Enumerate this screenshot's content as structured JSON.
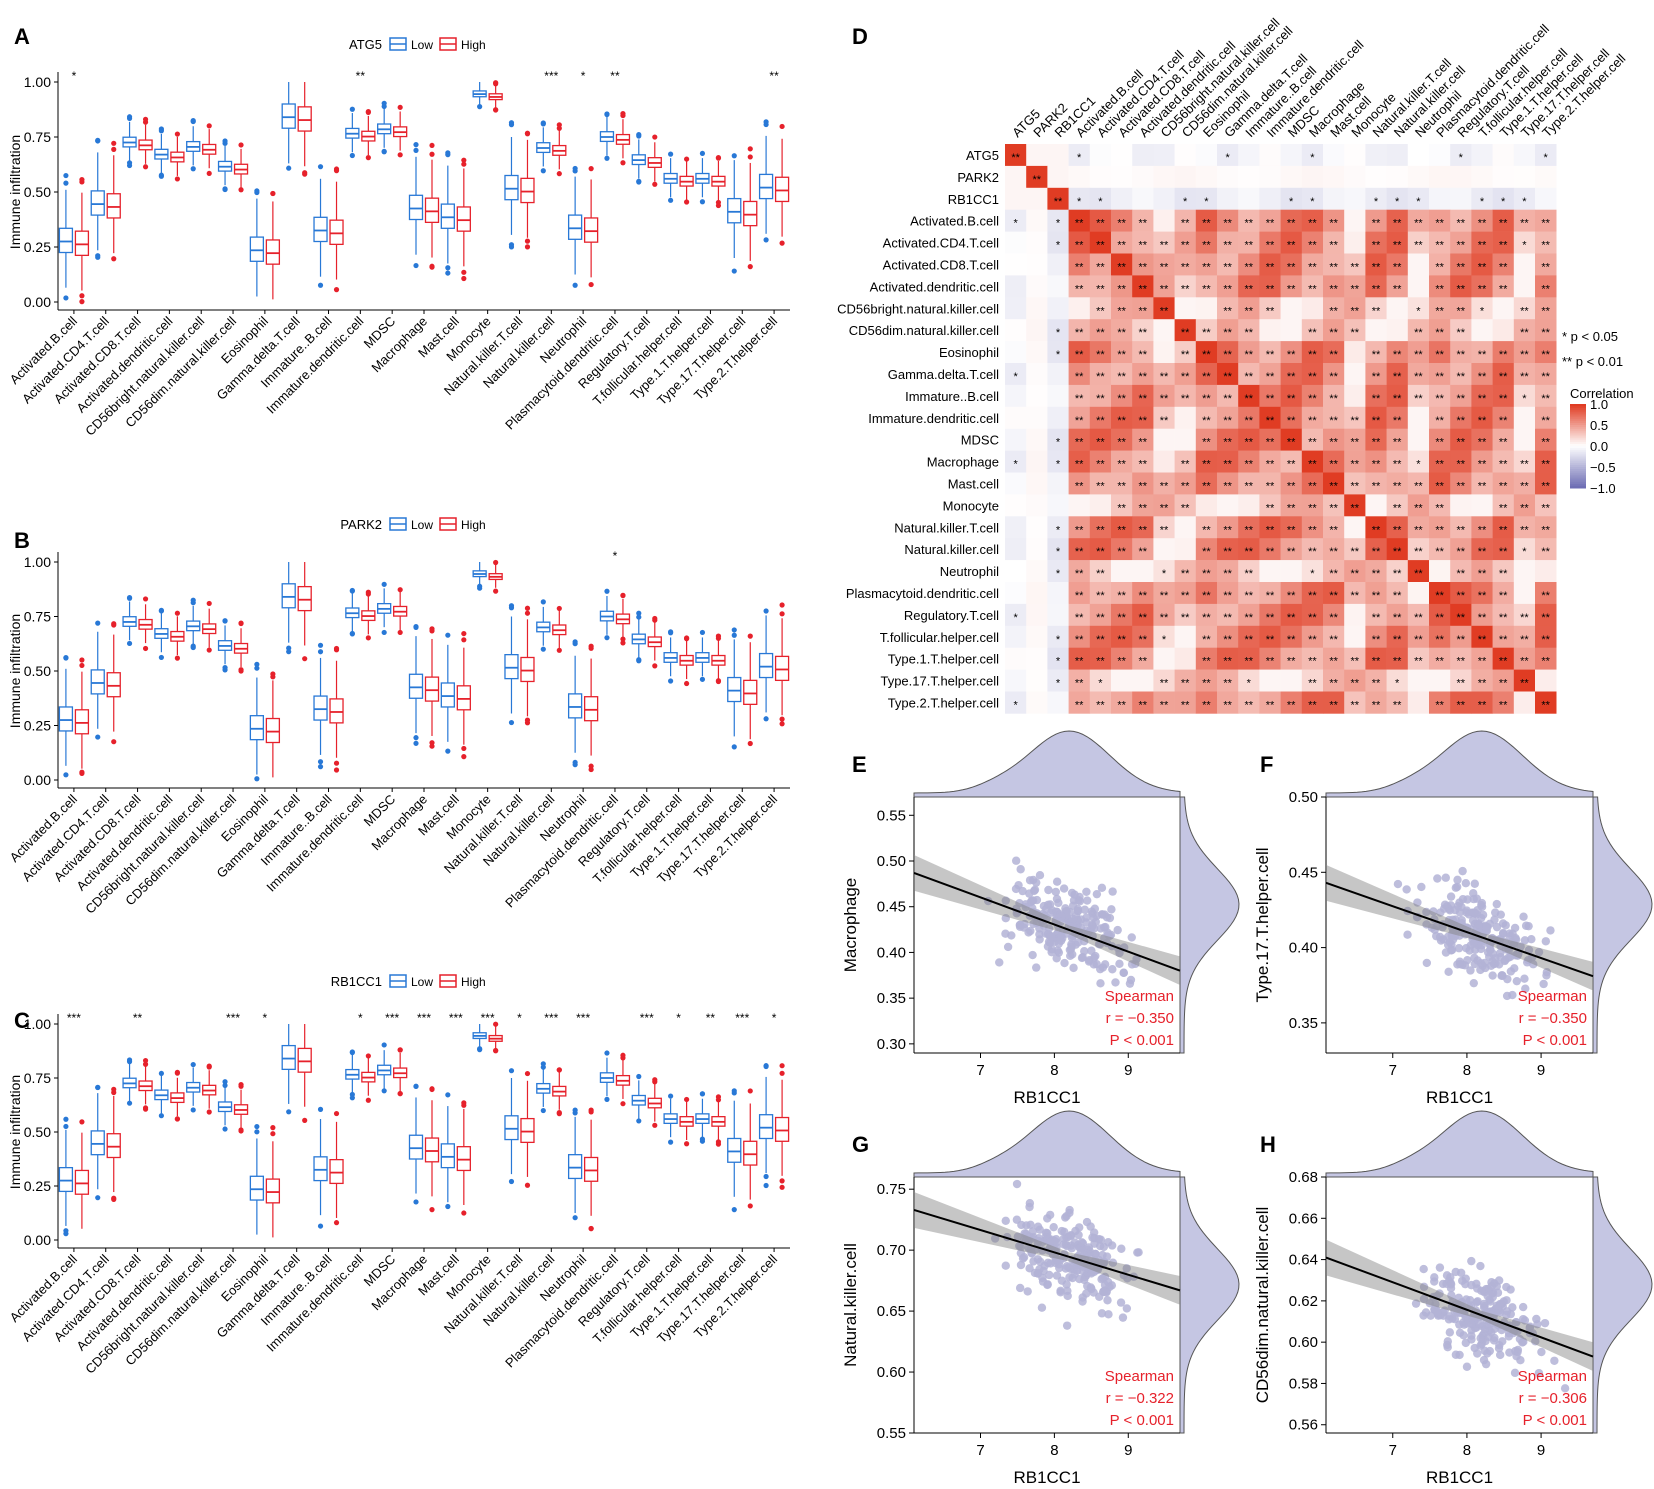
{
  "colors": {
    "low": "#2878d6",
    "high": "#e6212b",
    "scatter": "#b3b3d6",
    "density": "#c5c6e3",
    "heat_pos": "#e8432a",
    "heat_neg": "#6b6bb0",
    "stats": "#e6212b"
  },
  "panels": {
    "A": "A",
    "B": "B",
    "C": "C",
    "D": "D",
    "E": "E",
    "F": "F",
    "G": "G",
    "H": "H"
  },
  "boxplots": {
    "ylabel": "Immune infiltration",
    "yticks": [
      "0.00",
      "0.25",
      "0.50",
      "0.75",
      "1.00"
    ],
    "legend_low": "Low",
    "legend_high": "High",
    "cells": [
      "Activated.B.cell",
      "Activated.CD4.T.cell",
      "Activated.CD8.T.cell",
      "Activated.dendritic.cell",
      "CD56bright.natural.killer.cell",
      "CD56dim.natural.killer.cell",
      "Eosinophil",
      "Gamma.delta.T.cell",
      "Immature..B.cell",
      "Immature.dendritic.cell",
      "MDSC",
      "Macrophage",
      "Mast.cell",
      "Monocyte",
      "Natural.killer.T.cell",
      "Natural.killer.cell",
      "Neutrophil",
      "Plasmacytoid.dendritic.cell",
      "Regulatory.T.cell",
      "T.follicular.helper.cell",
      "Type.1.T.helper.cell",
      "Type.17.T.helper.cell",
      "Type.2.T.helper.cell"
    ],
    "medians": [
      0.27,
      0.44,
      0.72,
      0.665,
      0.7,
      0.61,
      0.23,
      0.835,
      0.32,
      0.76,
      0.78,
      0.42,
      0.38,
      0.94,
      0.51,
      0.695,
      0.33,
      0.745,
      0.64,
      0.555,
      0.555,
      0.405,
      0.515
    ],
    "charts": [
      {
        "gene": "ATG5",
        "sig": [
          "*",
          "",
          "",
          "",
          "",
          "",
          "",
          "",
          "",
          "**",
          "",
          "",
          "",
          "",
          "",
          "***",
          "*",
          "**",
          "",
          "",
          "",
          "",
          "**"
        ]
      },
      {
        "gene": "PARK2",
        "sig": [
          "",
          "",
          "",
          "",
          "",
          "",
          "",
          "",
          "",
          "",
          "",
          "",
          "",
          "",
          "",
          "",
          "",
          "*",
          "",
          "",
          "",
          "",
          ""
        ]
      },
      {
        "gene": "RB1CC1",
        "sig": [
          "***",
          "",
          "**",
          "",
          "",
          "***",
          "*",
          "",
          "",
          "*",
          "***",
          "***",
          "***",
          "***",
          "*",
          "***",
          "***",
          "",
          "***",
          "*",
          "**",
          "***",
          "*"
        ]
      }
    ]
  },
  "heatmap": {
    "row_labels": [
      "ATG5",
      "PARK2",
      "RB1CC1",
      "Activated.B.cell",
      "Activated.CD4.T.cell",
      "Activated.CD8.T.cell",
      "Activated.dendritic.cell",
      "CD56bright.natural.killer.cell",
      "CD56dim.natural.killer.cell",
      "Eosinophil",
      "Gamma.delta.T.cell",
      "Immature..B.cell",
      "Immature.dendritic.cell",
      "MDSC",
      "Macrophage",
      "Mast.cell",
      "Monocyte",
      "Natural.killer.T.cell",
      "Natural.killer.cell",
      "Neutrophil",
      "Plasmacytoid.dendritic.cell",
      "Regulatory.T.cell",
      "T.follicular.helper.cell",
      "Type.1.T.helper.cell",
      "Type.17.T.helper.cell",
      "Type.2.T.helper.cell"
    ],
    "legend_p1": "* p < 0.05",
    "legend_p2": "** p < 0.01",
    "legend_title": "Correlation",
    "legend_ticks": [
      "1.0",
      "0.5",
      "0.0",
      "−0.5",
      "−1.0"
    ]
  },
  "chart_data": [
    {
      "type": "boxplot",
      "title": "ATG5",
      "ylabel": "Immune infiltration",
      "ylim": [
        0,
        1
      ],
      "groups": [
        "Low",
        "High"
      ]
    },
    {
      "type": "boxplot",
      "title": "PARK2",
      "ylabel": "Immune infiltration",
      "ylim": [
        0,
        1
      ],
      "groups": [
        "Low",
        "High"
      ]
    },
    {
      "type": "boxplot",
      "title": "RB1CC1",
      "ylabel": "Immune infiltration",
      "ylim": [
        0,
        1
      ],
      "groups": [
        "Low",
        "High"
      ]
    },
    {
      "type": "heatmap",
      "title": "Correlation",
      "range": [
        -1,
        1
      ]
    },
    {
      "type": "scatter",
      "xlabel": "RB1CC1",
      "ylabel": "Macrophage",
      "xlim": [
        6.1,
        9.7
      ],
      "ylim": [
        0.29,
        0.57
      ],
      "xticks": [
        7,
        8,
        9
      ],
      "yticks": [
        0.3,
        0.35,
        0.4,
        0.45,
        0.5,
        0.55
      ],
      "fit": [
        [
          6.1,
          0.487
        ],
        [
          9.7,
          0.38
        ]
      ],
      "stat": "Spearman",
      "r": "r = −0.350",
      "p": "P < 0.001"
    },
    {
      "type": "scatter",
      "xlabel": "RB1CC1",
      "ylabel": "Type.17.T.helper.cell",
      "xlim": [
        6.1,
        9.7
      ],
      "ylim": [
        0.33,
        0.5
      ],
      "xticks": [
        7,
        8,
        9
      ],
      "yticks": [
        0.35,
        0.4,
        0.45,
        0.5
      ],
      "fit": [
        [
          6.1,
          0.443
        ],
        [
          9.7,
          0.381
        ]
      ],
      "stat": "Spearman",
      "r": "r = −0.350",
      "p": "P < 0.001"
    },
    {
      "type": "scatter",
      "xlabel": "RB1CC1",
      "ylabel": "Natural.killer.cell",
      "xlim": [
        6.1,
        9.7
      ],
      "ylim": [
        0.55,
        0.76
      ],
      "xticks": [
        7,
        8,
        9
      ],
      "yticks": [
        0.55,
        0.6,
        0.65,
        0.7,
        0.75
      ],
      "fit": [
        [
          6.1,
          0.733
        ],
        [
          9.7,
          0.667
        ]
      ],
      "stat": "Spearman",
      "r": "r = −0.322",
      "p": "P < 0.001"
    },
    {
      "type": "scatter",
      "xlabel": "RB1CC1",
      "ylabel": "CD56dim.natural.killer.cell",
      "xlim": [
        6.1,
        9.7
      ],
      "ylim": [
        0.556,
        0.68
      ],
      "xticks": [
        7,
        8,
        9
      ],
      "yticks": [
        0.56,
        0.58,
        0.6,
        0.62,
        0.64,
        0.66,
        0.68
      ],
      "fit": [
        [
          6.1,
          0.641
        ],
        [
          9.7,
          0.593
        ]
      ],
      "stat": "Spearman",
      "r": "r = −0.306",
      "p": "P < 0.001"
    }
  ]
}
